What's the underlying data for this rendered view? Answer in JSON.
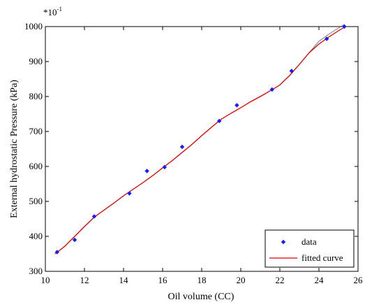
{
  "chart_data": {
    "type": "scatter",
    "xlabel": "Oil volume (CC)",
    "ylabel": "External hydrostatic Pressure (kPa)",
    "y_multiplier_label": "*10",
    "y_multiplier_exponent": "-1",
    "xlim": [
      10,
      26
    ],
    "ylim": [
      300,
      1000
    ],
    "x_ticks": [
      10,
      12,
      14,
      16,
      18,
      20,
      22,
      24,
      26
    ],
    "y_ticks": [
      300,
      400,
      500,
      600,
      700,
      800,
      900,
      1000
    ],
    "grid": false,
    "legend_position": "bottom-right",
    "colors": {
      "data": "#1a1aff",
      "fit": "#e00000",
      "fit_secondary": "#404040"
    },
    "series": [
      {
        "name": "data",
        "type": "scatter",
        "x": [
          10.6,
          11.5,
          12.5,
          14.3,
          15.2,
          16.1,
          17.0,
          18.9,
          19.8,
          21.6,
          22.6,
          24.4,
          25.3
        ],
        "y": [
          355,
          390,
          457,
          523,
          587,
          598,
          656,
          730,
          775,
          820,
          873,
          965,
          1000
        ]
      },
      {
        "name": "fitted curve",
        "type": "line",
        "x": [
          10.5,
          11.0,
          11.5,
          12.0,
          12.5,
          13.0,
          13.5,
          14.0,
          14.5,
          15.0,
          15.5,
          16.0,
          16.5,
          17.0,
          17.5,
          18.0,
          18.5,
          19.0,
          19.5,
          20.0,
          20.5,
          21.0,
          21.5,
          22.0,
          22.5,
          23.0,
          23.5,
          24.0,
          24.5,
          25.0,
          25.3
        ],
        "y": [
          350,
          372,
          400,
          428,
          455,
          475,
          495,
          516,
          535,
          554,
          574,
          596,
          617,
          640,
          663,
          688,
          712,
          735,
          752,
          768,
          785,
          800,
          816,
          833,
          860,
          892,
          925,
          950,
          970,
          988,
          998
        ]
      }
    ]
  }
}
